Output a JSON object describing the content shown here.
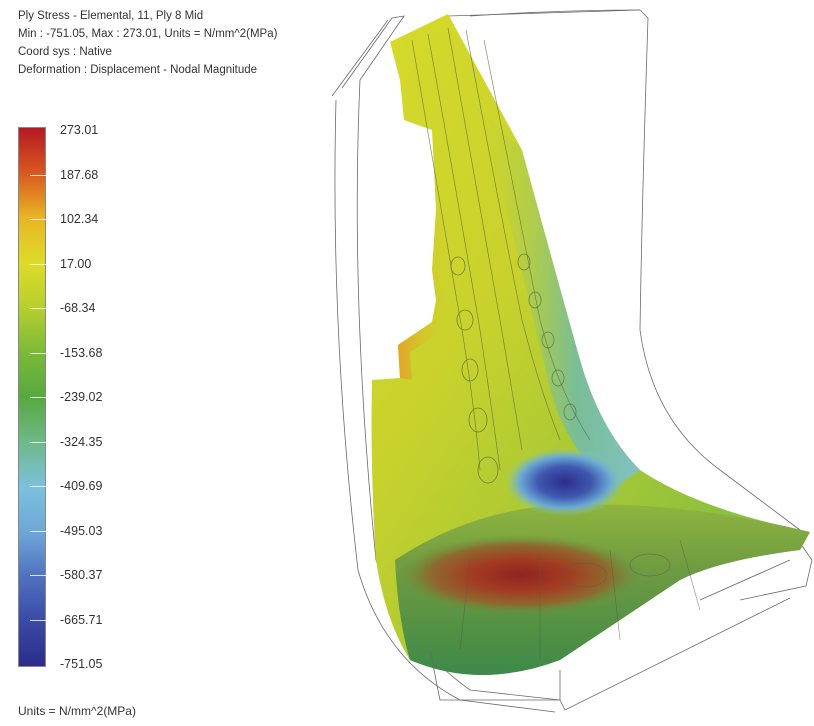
{
  "header": {
    "line1": "Ply Stress - Elemental, 11, Ply 8 Mid",
    "line2": "Min : -751.05, Max : 273.01, Units = N/mm^2(MPa)",
    "line3": "Coord sys : Native",
    "line4": "Deformation : Displacement - Nodal Magnitude"
  },
  "legend": {
    "labels": [
      "273.01",
      "187.68",
      "102.34",
      "17.00",
      "-68.34",
      "-153.68",
      "-239.02",
      "-324.35",
      "-409.69",
      "-495.03",
      "-580.37",
      "-665.71",
      "-751.05"
    ],
    "colors": [
      "#b51a22",
      "#d8581f",
      "#e9b425",
      "#dedc28",
      "#b7cf2e",
      "#7cba37",
      "#57a83f",
      "#6fb987",
      "#7cc1dc",
      "#6fa7d8",
      "#4f72c0",
      "#3a4aa5",
      "#2c2d8a"
    ]
  },
  "footer": {
    "units": "Units = N/mm^2(MPa)"
  }
}
